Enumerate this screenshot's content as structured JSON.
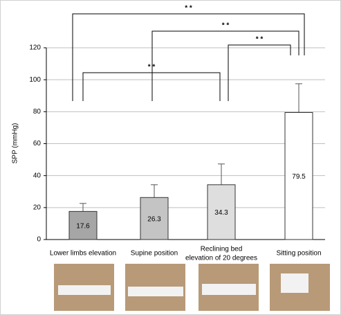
{
  "chart_data": {
    "type": "bar",
    "y_label": "SPP (mmHg)",
    "categories": [
      "Lower limbs elevation",
      "Supine position",
      "Reclining bed\nelevation of 20 degrees",
      "Sitting position"
    ],
    "series": [
      {
        "values": [
          17.6,
          26.3,
          34.3,
          79.5
        ],
        "errors": [
          5,
          8,
          13,
          18
        ],
        "colors": [
          "#a6a6a6",
          "#c4c4c4",
          "#dedede",
          "#ffffff"
        ]
      }
    ],
    "ylim": [
      0,
      120
    ],
    "yticks": [
      0,
      20,
      40,
      60,
      80,
      100,
      120
    ],
    "grid": true,
    "annotations": [
      {
        "text": "* *",
        "from": 0,
        "to": 3
      },
      {
        "text": "* *",
        "from": 1,
        "to": 3
      },
      {
        "text": "* *",
        "from": 2,
        "to": 3
      },
      {
        "text": "* *",
        "from": 0,
        "to": 2
      }
    ]
  }
}
